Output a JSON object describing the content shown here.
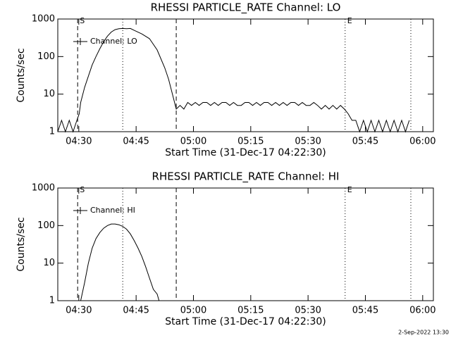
{
  "chart_data": [
    {
      "type": "line",
      "title": "RHESSI PARTICLE_RATE Channel: LO",
      "xlabel": "Start Time (31-Dec-17 04:22:30)",
      "ylabel": "Counts/sec",
      "log_y": true,
      "ylim": [
        1,
        1000
      ],
      "yticks": [
        1,
        10,
        100,
        1000
      ],
      "xlim": [
        2,
        100.3
      ],
      "xticks": [
        {
          "value": 7.5,
          "label": "04:30"
        },
        {
          "value": 22.5,
          "label": "04:45"
        },
        {
          "value": 37.5,
          "label": "05:00"
        },
        {
          "value": 52.5,
          "label": "05:15"
        },
        {
          "value": 67.5,
          "label": "05:30"
        },
        {
          "value": 82.5,
          "label": "05:45"
        },
        {
          "value": 97.5,
          "label": "06:00"
        }
      ],
      "markers": [
        {
          "x": 7.2,
          "style": "dashed",
          "label": "S"
        },
        {
          "x": 19,
          "style": "dotted"
        },
        {
          "x": 33,
          "style": "dashed"
        },
        {
          "x": 77.2,
          "style": "dotted",
          "label": "E"
        },
        {
          "x": 94.4,
          "style": "dotted"
        }
      ],
      "x": [
        2,
        3,
        4,
        5,
        6,
        7,
        7.6,
        8,
        9,
        10,
        11,
        12,
        13,
        14,
        15,
        16,
        17,
        18,
        19,
        20,
        21,
        22,
        24,
        26,
        28,
        30,
        31,
        32,
        33,
        34,
        35,
        36,
        37,
        38,
        39,
        40,
        41,
        42,
        43,
        44,
        45,
        46,
        47,
        48,
        49,
        50,
        51,
        52,
        53,
        54,
        55,
        56,
        57,
        58,
        59,
        60,
        61,
        62,
        63,
        64,
        65,
        66,
        67,
        68,
        69,
        70,
        71,
        72,
        73,
        74,
        75,
        76,
        77,
        78,
        79,
        80,
        81,
        82,
        83,
        84,
        85,
        86,
        87,
        88,
        89,
        90,
        91,
        92,
        93,
        94
      ],
      "series": [
        {
          "name": "Channel: LO",
          "color": "#000000",
          "values": [
            1,
            2,
            1,
            2,
            1,
            2,
            3,
            6,
            15,
            30,
            60,
            100,
            160,
            250,
            350,
            450,
            520,
            550,
            560,
            550,
            560,
            500,
            400,
            300,
            150,
            50,
            25,
            10,
            4,
            5,
            4,
            6,
            5,
            6,
            5,
            6,
            6,
            5,
            6,
            5,
            6,
            6,
            5,
            6,
            5,
            5,
            6,
            6,
            5,
            6,
            5,
            6,
            6,
            5,
            6,
            5,
            6,
            5,
            6,
            6,
            5,
            6,
            5,
            5,
            6,
            5,
            4,
            5,
            4,
            5,
            4,
            5,
            4,
            3,
            2,
            2,
            1,
            2,
            1,
            2,
            1,
            2,
            1,
            2,
            1,
            2,
            1,
            2,
            1,
            2
          ]
        }
      ]
    },
    {
      "type": "line",
      "title": "RHESSI PARTICLE_RATE Channel: HI",
      "xlabel": "Start Time (31-Dec-17 04:22:30)",
      "ylabel": "Counts/sec",
      "log_y": true,
      "ylim": [
        1,
        1000
      ],
      "yticks": [
        1,
        10,
        100,
        1000
      ],
      "xlim": [
        2,
        100.3
      ],
      "xticks": [
        {
          "value": 7.5,
          "label": "04:30"
        },
        {
          "value": 22.5,
          "label": "04:45"
        },
        {
          "value": 37.5,
          "label": "05:00"
        },
        {
          "value": 52.5,
          "label": "05:15"
        },
        {
          "value": 67.5,
          "label": "05:30"
        },
        {
          "value": 82.5,
          "label": "05:45"
        },
        {
          "value": 97.5,
          "label": "06:00"
        }
      ],
      "markers": [
        {
          "x": 7.2,
          "style": "dashed",
          "label": "S"
        },
        {
          "x": 19,
          "style": "dotted"
        },
        {
          "x": 33,
          "style": "dashed"
        },
        {
          "x": 77.2,
          "style": "dotted",
          "label": "E"
        },
        {
          "x": 94.4,
          "style": "dotted"
        }
      ],
      "x": [
        8,
        9,
        10,
        11,
        12,
        13,
        14,
        15,
        16,
        17,
        18,
        19,
        20,
        21,
        22,
        23,
        24,
        25,
        26,
        27,
        28,
        28.5
      ],
      "series": [
        {
          "name": "Channel: HI",
          "color": "#000000",
          "values": [
            1,
            3,
            10,
            25,
            45,
            65,
            85,
            100,
            110,
            110,
            105,
            95,
            80,
            60,
            40,
            25,
            15,
            8,
            4,
            2,
            1.5,
            1
          ]
        }
      ]
    }
  ],
  "footer": "2-Sep-2022 13:30"
}
